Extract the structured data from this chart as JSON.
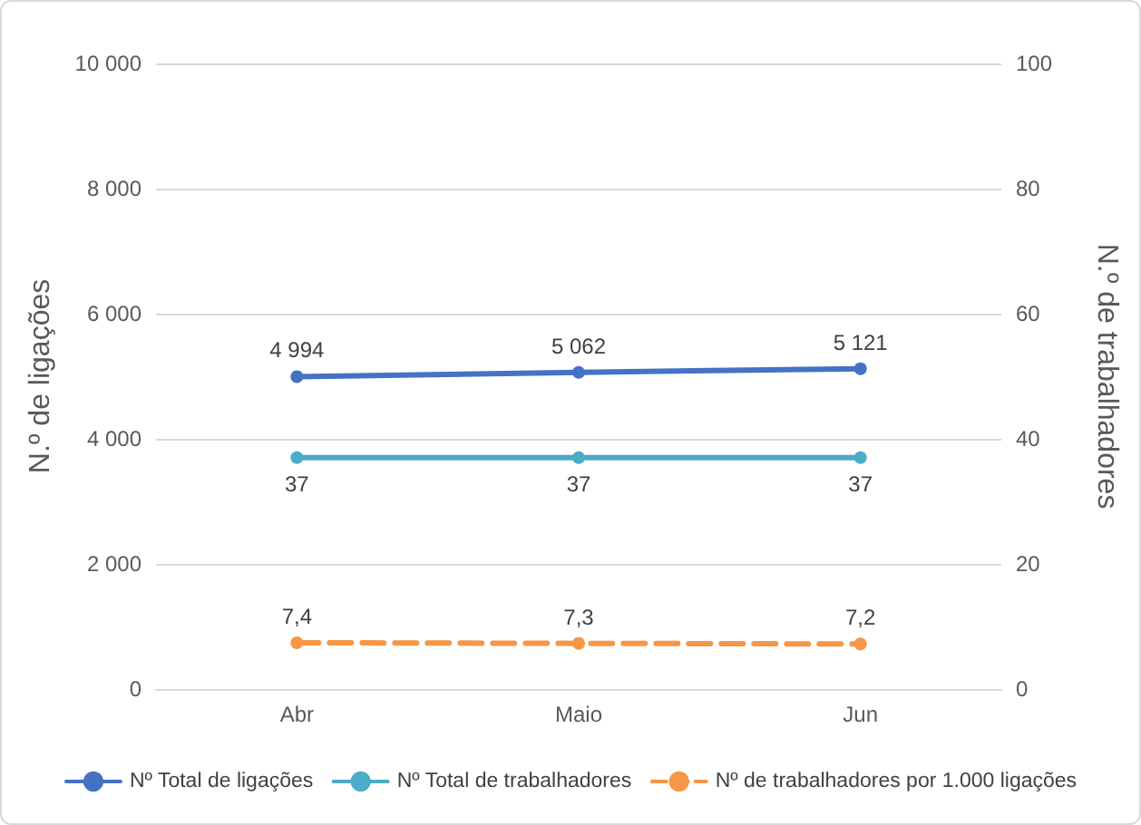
{
  "chart_data": {
    "type": "line",
    "categories": [
      "Abr",
      "Maio",
      "Jun"
    ],
    "ylabel": "N.º de ligações",
    "y2label": "N.º de trabalhadores",
    "ylim": [
      0,
      10000
    ],
    "yticks": [
      {
        "value": 0,
        "label": "0"
      },
      {
        "value": 2000,
        "label": "2 000"
      },
      {
        "value": 4000,
        "label": "4 000"
      },
      {
        "value": 6000,
        "label": "6 000"
      },
      {
        "value": 8000,
        "label": "8 000"
      },
      {
        "value": 10000,
        "label": "10 000"
      }
    ],
    "y2lim": [
      0,
      100
    ],
    "y2ticks": [
      0,
      20,
      40,
      60,
      80,
      100
    ],
    "series": [
      {
        "name": "Nº Total de ligações",
        "color": "#4472c4",
        "values": [
          4994,
          5062,
          5121
        ],
        "value_labels": [
          "4 994",
          "5 062",
          "5 121"
        ]
      },
      {
        "name": "Nº Total de trabalhadores",
        "color": "#4bacc6",
        "values": [
          37,
          37,
          37
        ],
        "axis": "y2",
        "value_labels": [
          "37",
          "37",
          "37"
        ]
      },
      {
        "name": "Nº de trabalhadores por 1.000 ligações",
        "color": "#f79646",
        "values": [
          7.4,
          7.3,
          7.2
        ],
        "axis": "y2",
        "line_style": "dashed",
        "value_labels": [
          "7,4",
          "7,3",
          "7,2"
        ]
      }
    ],
    "grid": "y",
    "legend": "bottom",
    "marker": "circle"
  }
}
